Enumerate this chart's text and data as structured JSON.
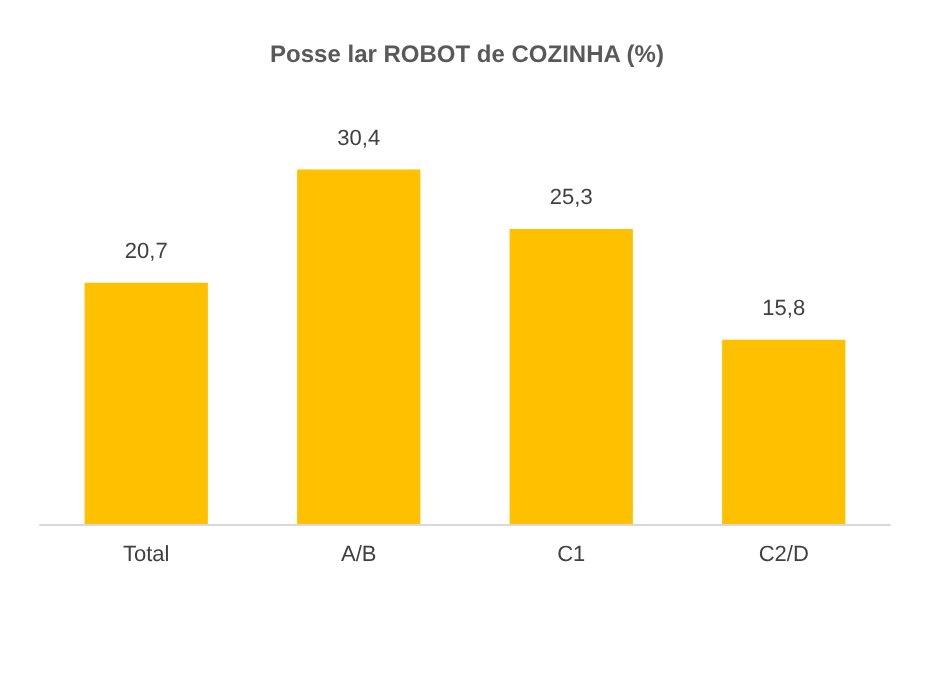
{
  "chart_data": {
    "type": "bar",
    "title": "Posse lar ROBOT de COZINHA (%)",
    "categories": [
      "Total",
      "A/B",
      "C1",
      "C2/D"
    ],
    "values": [
      20.7,
      30.4,
      25.3,
      15.8
    ],
    "color": "#ffc000",
    "value_labels": [
      "20,7",
      "30,4",
      "25,3",
      "15,8"
    ]
  }
}
